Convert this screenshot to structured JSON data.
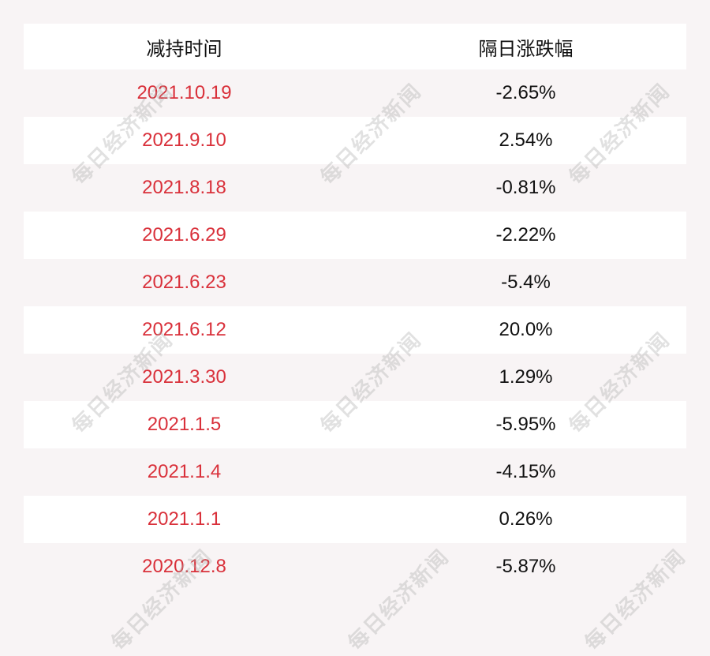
{
  "watermark": "每日经济新闻",
  "colors": {
    "date_text": "#d9303a",
    "value_text": "#111111",
    "background": "#f8f4f5"
  },
  "table": {
    "headers": [
      "减持时间",
      "隔日涨跌幅"
    ],
    "rows": [
      {
        "date": "2021.10.19",
        "change": "-2.65%"
      },
      {
        "date": "2021.9.10",
        "change": "2.54%"
      },
      {
        "date": "2021.8.18",
        "change": "-0.81%"
      },
      {
        "date": "2021.6.29",
        "change": "-2.22%"
      },
      {
        "date": "2021.6.23",
        "change": "-5.4%"
      },
      {
        "date": "2021.6.12",
        "change": "20.0%"
      },
      {
        "date": "2021.3.30",
        "change": "1.29%"
      },
      {
        "date": "2021.1.5",
        "change": "-5.95%"
      },
      {
        "date": "2021.1.4",
        "change": "-4.15%"
      },
      {
        "date": "2021.1.1",
        "change": "0.26%"
      },
      {
        "date": "2020.12.8",
        "change": "-5.87%"
      }
    ]
  }
}
